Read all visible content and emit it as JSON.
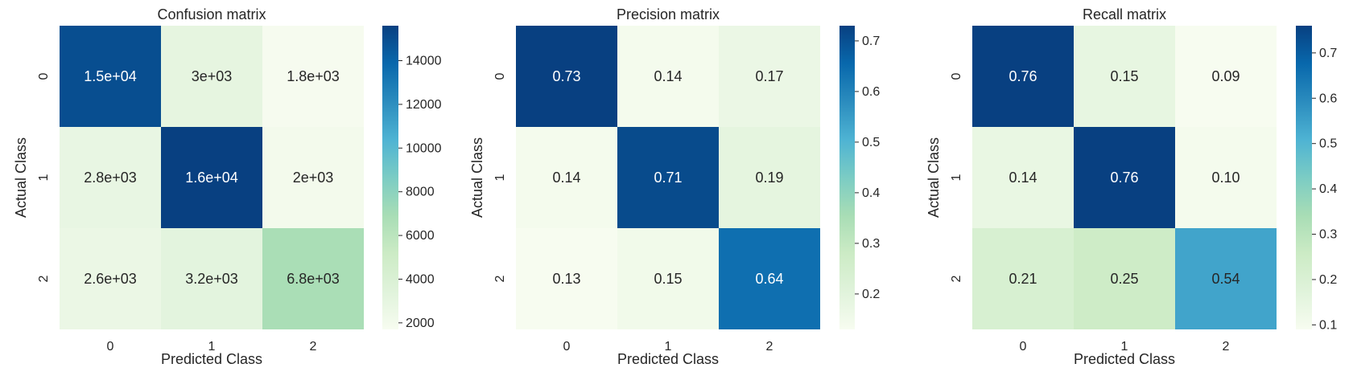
{
  "chart_data": [
    {
      "type": "heatmap",
      "title": "Confusion matrix",
      "xlabel": "Predicted Class",
      "ylabel": "Actual Class",
      "x_categories": [
        "0",
        "1",
        "2"
      ],
      "y_categories": [
        "0",
        "1",
        "2"
      ],
      "values": [
        [
          15000,
          3000,
          1800
        ],
        [
          2800,
          16000,
          2000
        ],
        [
          2600,
          3200,
          6800
        ]
      ],
      "annotations": [
        [
          "1.5e+04",
          "3e+03",
          "1.8e+03"
        ],
        [
          "2.8e+03",
          "1.6e+04",
          "2e+03"
        ],
        [
          "2.6e+03",
          "3.2e+03",
          "6.8e+03"
        ]
      ],
      "colormap": "GnBu",
      "vmin": 1700,
      "vmax": 15600,
      "colorbar_ticks": [
        "2000",
        "4000",
        "6000",
        "8000",
        "10000",
        "12000",
        "14000"
      ]
    },
    {
      "type": "heatmap",
      "title": "Precision matrix",
      "xlabel": "Predicted Class",
      "ylabel": "Actual Class",
      "x_categories": [
        "0",
        "1",
        "2"
      ],
      "y_categories": [
        "0",
        "1",
        "2"
      ],
      "values": [
        [
          0.73,
          0.14,
          0.17
        ],
        [
          0.14,
          0.71,
          0.19
        ],
        [
          0.13,
          0.15,
          0.64
        ]
      ],
      "annotations": [
        [
          "0.73",
          "0.14",
          "0.17"
        ],
        [
          "0.14",
          "0.71",
          "0.19"
        ],
        [
          "0.13",
          "0.15",
          "0.64"
        ]
      ],
      "colormap": "GnBu",
      "vmin": 0.13,
      "vmax": 0.73,
      "colorbar_ticks": [
        "0.2",
        "0.3",
        "0.4",
        "0.5",
        "0.6",
        "0.7"
      ]
    },
    {
      "type": "heatmap",
      "title": "Recall matrix",
      "xlabel": "Predicted Class",
      "ylabel": "Actual Class",
      "x_categories": [
        "0",
        "1",
        "2"
      ],
      "y_categories": [
        "0",
        "1",
        "2"
      ],
      "values": [
        [
          0.76,
          0.15,
          0.09
        ],
        [
          0.14,
          0.76,
          0.1
        ],
        [
          0.21,
          0.25,
          0.54
        ]
      ],
      "annotations": [
        [
          "0.76",
          "0.15",
          "0.09"
        ],
        [
          "0.14",
          "0.76",
          "0.10"
        ],
        [
          "0.21",
          "0.25",
          "0.54"
        ]
      ],
      "colormap": "GnBu",
      "vmin": 0.09,
      "vmax": 0.76,
      "colorbar_ticks": [
        "0.1",
        "0.2",
        "0.3",
        "0.4",
        "0.5",
        "0.6",
        "0.7"
      ]
    }
  ]
}
